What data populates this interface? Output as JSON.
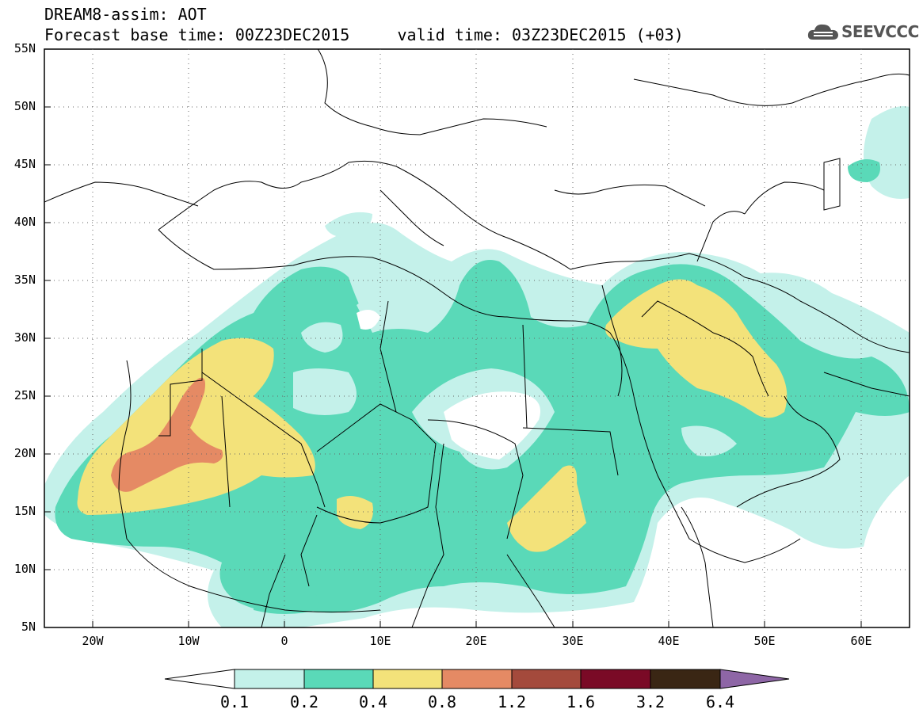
{
  "title": {
    "line1": "DREAM8-assim: AOT",
    "line2": "Forecast base time: 00Z23DEC2015     valid time: 03Z23DEC2015 (+03)"
  },
  "brand": {
    "name": "SEEVCCC",
    "icon": "cloud-logo-icon"
  },
  "axes": {
    "lat_ticks": [
      "55N",
      "50N",
      "45N",
      "40N",
      "35N",
      "30N",
      "25N",
      "20N",
      "15N",
      "10N",
      "5N"
    ],
    "lon_ticks": [
      "20W",
      "10W",
      "0",
      "10E",
      "20E",
      "30E",
      "40E",
      "50E",
      "60E"
    ],
    "lat_range": [
      5,
      55
    ],
    "lon_range": [
      -25,
      65
    ],
    "grid": "dotted"
  },
  "colorbar": {
    "labels": [
      "0.1",
      "0.2",
      "0.4",
      "0.8",
      "1.2",
      "1.6",
      "3.2",
      "6.4"
    ],
    "colors": [
      "#ffffff",
      "#c4f1ea",
      "#5ad9b8",
      "#f3e27a",
      "#e58a64",
      "#a44a3c",
      "#7a0a26",
      "#3a2614",
      "#8e66a6"
    ]
  },
  "colors": {
    "aot_0_1": "#c4f1ea",
    "aot_0_2": "#5ad9b8",
    "aot_0_4": "#f3e27a",
    "aot_0_8": "#e58a64"
  }
}
